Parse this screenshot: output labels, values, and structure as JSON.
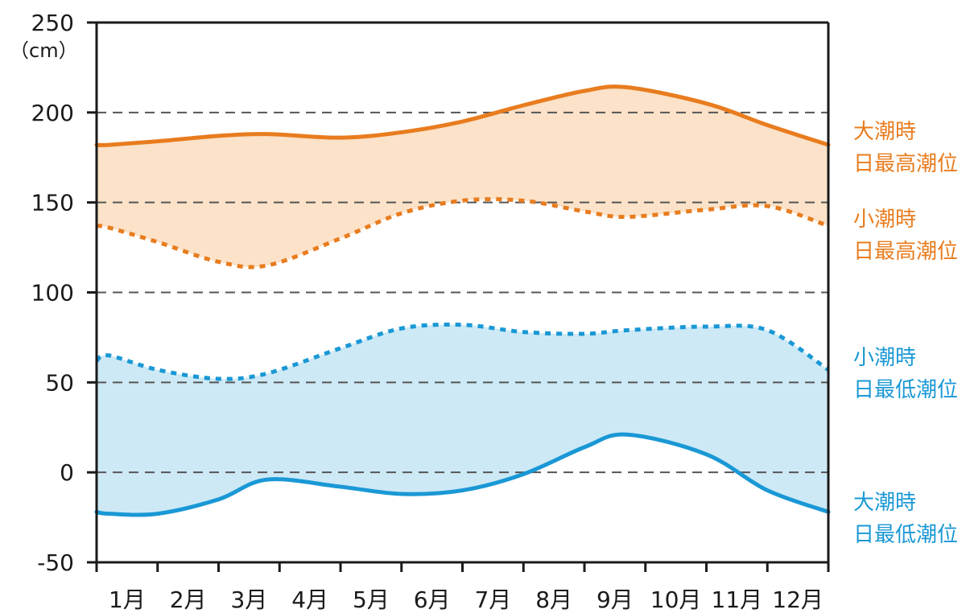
{
  "chart_data": {
    "type": "area",
    "y_unit": "（cm）",
    "ylim": [
      -50,
      250
    ],
    "yticks": [
      250,
      200,
      150,
      100,
      50,
      0,
      -50
    ],
    "categories": [
      "1月",
      "2月",
      "3月",
      "4月",
      "5月",
      "6月",
      "7月",
      "8月",
      "9月",
      "10月",
      "11月",
      "12月"
    ],
    "x": [
      0.0,
      0.2,
      1.0,
      2.0,
      2.8,
      4.0,
      5.0,
      6.0,
      7.0,
      8.0,
      8.7,
      10.0,
      11.0,
      12.0
    ],
    "grid": "dashed-horizontal",
    "series": [
      {
        "name": "大潮時\n日最高潮位",
        "label_lines": [
          "大潮時",
          "日最高潮位"
        ],
        "style": "solid",
        "color": "#e87c1e",
        "values": [
          182,
          182,
          184,
          187,
          188,
          186,
          189,
          195,
          204,
          212,
          214,
          205,
          193,
          182
        ]
      },
      {
        "name": "小潮時\n日最高潮位",
        "label_lines": [
          "小潮時",
          "日最高潮位"
        ],
        "style": "dotted",
        "color": "#e87c1e",
        "values": [
          137,
          136,
          128,
          117,
          115,
          130,
          144,
          151,
          151,
          145,
          142,
          146,
          148,
          137
        ]
      },
      {
        "name": "小潮時\n日最低潮位",
        "label_lines": [
          "小潮時",
          "日最低潮位"
        ],
        "style": "dotted",
        "color": "#1a98d5",
        "values": [
          62,
          65,
          57,
          52,
          55,
          69,
          80,
          82,
          78,
          77,
          79,
          81,
          79,
          57
        ]
      },
      {
        "name": "大潮時\n日最低潮位",
        "label_lines": [
          "大潮時",
          "日最低潮位"
        ],
        "style": "solid",
        "color": "#1a98d5",
        "values": [
          -22,
          -23,
          -23,
          -15,
          -4,
          -8,
          -12,
          -10,
          -1,
          14,
          21,
          10,
          -10,
          -22
        ]
      }
    ],
    "bands": [
      {
        "between": [
          0,
          1
        ],
        "color": "#fbe2c8"
      },
      {
        "between": [
          2,
          3
        ],
        "color": "#cde9f6"
      }
    ]
  }
}
